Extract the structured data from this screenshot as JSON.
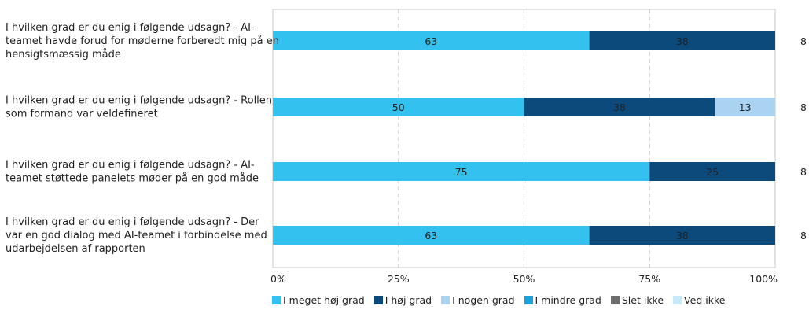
{
  "chart_data": {
    "type": "bar",
    "orientation": "horizontal",
    "stacked": true,
    "percent_scale": true,
    "categories": [
      [
        "I hvilken grad er du enig i følgende udsagn? - AI-",
        "teamet havde forud for møderne forberedt mig på en",
        "hensigtsmæssig måde"
      ],
      [
        "I hvilken grad er du enig i følgende udsagn? - Rollen",
        "som formand var veldefineret"
      ],
      [
        "I hvilken grad er du enig i følgende udsagn? - AI-",
        "teamet støttede panelets møder på en god måde"
      ],
      [
        "I hvilken grad er du enig i følgende udsagn? - Der",
        "var en god dialog med AI-teamet i forbindelse med",
        "udarbejdelsen af rapporten"
      ]
    ],
    "n_values": [
      "8",
      "8",
      "8",
      "8"
    ],
    "series": [
      {
        "name": "I meget høj grad",
        "color": "#33c2f0",
        "values": [
          63,
          50,
          75,
          63
        ]
      },
      {
        "name": "I høj grad",
        "color": "#0d4a7c",
        "values": [
          38,
          38,
          25,
          38
        ]
      },
      {
        "name": "I nogen grad",
        "color": "#a9d3f0",
        "values": [
          0,
          13,
          0,
          0
        ]
      },
      {
        "name": "I mindre grad",
        "color": "#1aa3d9",
        "values": [
          0,
          0,
          0,
          0
        ]
      },
      {
        "name": "Slet ikke",
        "color": "#6e6e6e",
        "values": [
          0,
          0,
          0,
          0
        ]
      },
      {
        "name": "Ved ikke",
        "color": "#c9e8f8",
        "values": [
          0,
          0,
          0,
          0
        ]
      }
    ],
    "x_ticks": [
      "0%",
      "25%",
      "50%",
      "75%",
      "100%"
    ],
    "xlim": [
      0,
      100
    ],
    "grid": true,
    "legend_position": "bottom"
  }
}
